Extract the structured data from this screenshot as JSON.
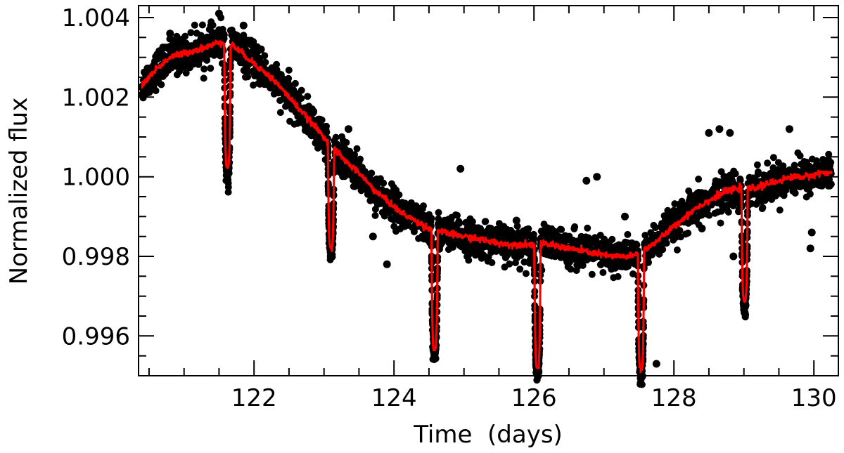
{
  "chart_data": {
    "type": "scatter",
    "title": "",
    "xlabel": "Time  (days)",
    "ylabel": "Normalized flux",
    "xlim": [
      120.35,
      130.35
    ],
    "ylim": [
      0.995,
      1.0043
    ],
    "x_ticks": [
      {
        "value": 122,
        "label": "122"
      },
      {
        "value": 124,
        "label": "124"
      },
      {
        "value": 126,
        "label": "126"
      },
      {
        "value": 128,
        "label": "128"
      },
      {
        "value": 130,
        "label": "130"
      }
    ],
    "y_ticks": [
      {
        "value": 0.996,
        "label": "0.996"
      },
      {
        "value": 0.998,
        "label": "0.998"
      },
      {
        "value": 1.0,
        "label": "1.000"
      },
      {
        "value": 1.002,
        "label": "1.002"
      },
      {
        "value": 1.004,
        "label": "1.004"
      }
    ],
    "x_minor_step": 0.5,
    "y_minor_step": 0.0005,
    "grid": false,
    "colors": {
      "observed": "#000000",
      "model": "#ff0000",
      "axes": "#000000"
    },
    "series": [
      {
        "kind": "observed-points",
        "baseline": [
          [
            120.4,
            1.0023
          ],
          [
            120.6,
            1.0027
          ],
          [
            120.8,
            1.003
          ],
          [
            121.0,
            1.0031
          ],
          [
            121.2,
            1.0032
          ],
          [
            121.4,
            1.0033
          ],
          [
            121.5,
            1.0034
          ],
          [
            121.7,
            1.0033
          ],
          [
            121.9,
            1.003
          ],
          [
            122.1,
            1.0027
          ],
          [
            122.3,
            1.0024
          ],
          [
            122.5,
            1.002
          ],
          [
            122.7,
            1.0016
          ],
          [
            122.9,
            1.0012
          ],
          [
            123.1,
            1.0008
          ],
          [
            123.3,
            1.0004
          ],
          [
            123.5,
            1.0001
          ],
          [
            123.7,
            0.9997
          ],
          [
            123.9,
            0.9994
          ],
          [
            124.1,
            0.9991
          ],
          [
            124.3,
            0.9989
          ],
          [
            124.5,
            0.9987
          ],
          [
            124.7,
            0.9986
          ],
          [
            125.0,
            0.9985
          ],
          [
            125.3,
            0.9984
          ],
          [
            125.6,
            0.9983
          ],
          [
            125.9,
            0.9983
          ],
          [
            126.2,
            0.9983
          ],
          [
            126.5,
            0.9982
          ],
          [
            126.8,
            0.9981
          ],
          [
            127.1,
            0.998
          ],
          [
            127.4,
            0.998
          ],
          [
            127.7,
            0.9983
          ],
          [
            127.9,
            0.9986
          ],
          [
            128.1,
            0.9989
          ],
          [
            128.3,
            0.9992
          ],
          [
            128.5,
            0.9994
          ],
          [
            128.7,
            0.9996
          ],
          [
            128.9,
            0.9997
          ],
          [
            129.1,
            0.9997
          ],
          [
            129.3,
            0.9998
          ],
          [
            129.5,
            0.9999
          ],
          [
            129.7,
            1.0
          ],
          [
            129.9,
            1.0
          ],
          [
            130.1,
            1.0001
          ],
          [
            130.25,
            1.0001
          ]
        ],
        "transits": [
          {
            "t": 121.62,
            "depth": 0.0031,
            "half_width": 0.045
          },
          {
            "t": 123.1,
            "depth": 0.0026,
            "half_width": 0.045
          },
          {
            "t": 124.58,
            "depth": 0.003,
            "half_width": 0.045
          },
          {
            "t": 126.05,
            "depth": 0.0031,
            "half_width": 0.045
          },
          {
            "t": 127.53,
            "depth": 0.003,
            "half_width": 0.045
          },
          {
            "t": 129.01,
            "depth": 0.0028,
            "half_width": 0.045
          }
        ],
        "scatter_sigma": 0.00022,
        "outliers": [
          [
            120.8,
            1.0036
          ],
          [
            121.5,
            1.0041
          ],
          [
            121.85,
            1.0038
          ],
          [
            122.1,
            1.0032
          ],
          [
            123.35,
            1.0012
          ],
          [
            123.7,
            0.9985
          ],
          [
            123.9,
            0.9978
          ],
          [
            124.95,
            1.0002
          ],
          [
            125.75,
            0.9989
          ],
          [
            126.75,
            0.9999
          ],
          [
            126.9,
            1.0
          ],
          [
            127.3,
            0.999
          ],
          [
            127.75,
            0.9953
          ],
          [
            128.5,
            1.0011
          ],
          [
            128.65,
            1.0012
          ],
          [
            128.8,
            1.0011
          ],
          [
            129.4,
            0.9997
          ],
          [
            129.65,
            1.0012
          ],
          [
            129.95,
            0.9982
          ],
          [
            129.97,
            0.9986
          ],
          [
            128.4,
            0.9987
          ],
          [
            128.85,
            0.998
          ]
        ]
      },
      {
        "kind": "model-line",
        "follows": "observed-points"
      }
    ]
  }
}
